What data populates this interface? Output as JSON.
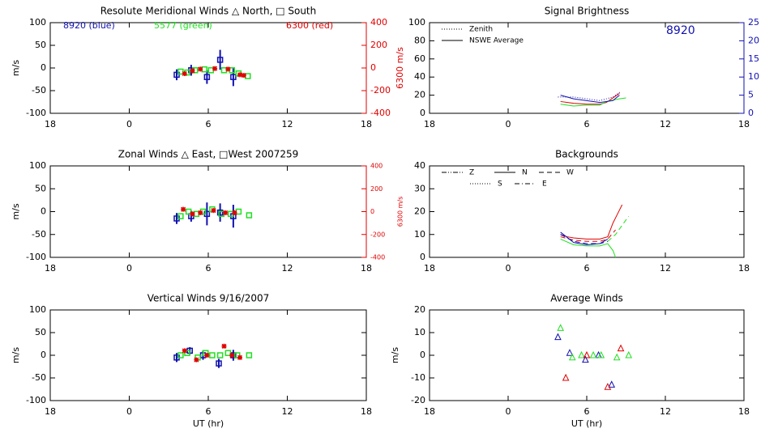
{
  "chart_data": [
    {
      "type": "scatter",
      "title": "Resolute Meridional Winds △ North, □ South",
      "ylabel": "m/s",
      "y2label": "6300 m/s",
      "y2color": "#e00000",
      "xlim": [
        -6,
        18
      ],
      "xticks": [
        {
          "value": -6,
          "label": "18"
        },
        0,
        6,
        12,
        18
      ],
      "ylim": [
        -100,
        100
      ],
      "yticks": [
        -100,
        -50,
        0,
        50,
        100
      ],
      "y2lim": [
        -400,
        400
      ],
      "y2ticks": [
        -400,
        -200,
        0,
        200,
        400
      ],
      "annotations": [
        {
          "text": "8920 (blue)",
          "color": "#1010b0"
        },
        {
          "text": "5577 (green)",
          "color": "#20e020"
        },
        {
          "text": "6300 (red)",
          "color": "#e00000"
        }
      ],
      "series": [
        {
          "color": "#1010b0",
          "marker": "square",
          "x": [
            3.6,
            4.7,
            5.9,
            6.9,
            7.9
          ],
          "values": [
            -15,
            -5,
            -20,
            18,
            -20
          ],
          "errors": [
            12,
            12,
            15,
            22,
            20
          ]
        },
        {
          "color": "#20e020",
          "marker": "square",
          "x": [
            3.9,
            4.4,
            5.0,
            5.7,
            6.2,
            7.2,
            7.8,
            8.3,
            9.0
          ],
          "values": [
            -8,
            -10,
            -5,
            -3,
            -5,
            -5,
            -5,
            -12,
            -18
          ]
        },
        {
          "color": "#e00000",
          "marker": "asterisk",
          "axis": "y2",
          "x": [
            4.2,
            4.8,
            5.4,
            6.5,
            7.5,
            8.4,
            8.7
          ],
          "values": [
            -50,
            -25,
            -10,
            -5,
            -10,
            -60,
            -65
          ]
        }
      ]
    },
    {
      "type": "scatter",
      "title": "Zonal Winds △ East, □West 2007259",
      "ylabel": "m/s",
      "y2label": "6300 m/s",
      "y2color": "#e00000",
      "xlim": [
        -6,
        18
      ],
      "xticks": [
        {
          "value": -6,
          "label": "18"
        },
        0,
        6,
        12,
        18
      ],
      "ylim": [
        -100,
        100
      ],
      "yticks": [
        -100,
        -50,
        0,
        50,
        100
      ],
      "y2lim": [
        -400,
        400
      ],
      "y2ticks": [
        -400,
        -200,
        0,
        200,
        400
      ],
      "series": [
        {
          "color": "#1010b0",
          "marker": "square",
          "x": [
            3.6,
            4.7,
            5.9,
            6.9,
            7.9
          ],
          "values": [
            -15,
            -10,
            -5,
            -2,
            -10
          ],
          "errors": [
            12,
            12,
            25,
            20,
            25
          ]
        },
        {
          "color": "#20e020",
          "marker": "square",
          "x": [
            3.9,
            4.5,
            5.1,
            5.6,
            6.3,
            7.0,
            7.7,
            8.3,
            9.1
          ],
          "values": [
            -10,
            0,
            -5,
            0,
            5,
            -5,
            -5,
            0,
            -8
          ]
        },
        {
          "color": "#e00000",
          "marker": "asterisk",
          "axis": "y2",
          "x": [
            4.1,
            4.8,
            5.4,
            6.4,
            7.3,
            8.0
          ],
          "values": [
            20,
            -20,
            -10,
            10,
            -10,
            -10
          ]
        }
      ]
    },
    {
      "type": "scatter",
      "title": "Vertical Winds 9/16/2007",
      "ylabel": "m/s",
      "xlabel": "UT (hr)",
      "xlim": [
        -6,
        18
      ],
      "xticks": [
        {
          "value": -6,
          "label": "18"
        },
        0,
        6,
        12,
        18
      ],
      "ylim": [
        -100,
        100
      ],
      "yticks": [
        -100,
        -50,
        0,
        50,
        100
      ],
      "series": [
        {
          "color": "#1010b0",
          "marker": "square",
          "x": [
            3.6,
            4.6,
            5.6,
            6.8,
            7.9
          ],
          "values": [
            -5,
            10,
            0,
            -18,
            0
          ],
          "errors": [
            10,
            8,
            10,
            10,
            12
          ]
        },
        {
          "color": "#20e020",
          "marker": "square",
          "x": [
            3.9,
            4.4,
            5.2,
            5.8,
            6.3,
            6.9,
            7.5,
            8.2,
            9.1
          ],
          "values": [
            0,
            5,
            -5,
            5,
            0,
            0,
            5,
            0,
            0
          ]
        },
        {
          "color": "#e00000",
          "marker": "asterisk",
          "x": [
            4.2,
            5.1,
            5.9,
            7.2,
            7.8,
            8.4
          ],
          "values": [
            10,
            -10,
            0,
            20,
            0,
            -5
          ]
        }
      ]
    },
    {
      "type": "line",
      "title": "Signal Brightness",
      "y2color": "#1010b0",
      "xlim": [
        -6,
        18
      ],
      "xticks": [
        {
          "value": -6,
          "label": "18"
        },
        0,
        6,
        12,
        18
      ],
      "ylim": [
        0,
        100
      ],
      "yticks": [
        0,
        20,
        40,
        60,
        80,
        100
      ],
      "y2lim": [
        0,
        25
      ],
      "y2ticks": [
        0,
        5,
        10,
        15,
        20,
        25
      ],
      "annotations": [
        {
          "text": "8920",
          "color": "#1010b0"
        }
      ],
      "legend": [
        {
          "label": "Zenith",
          "dash": "dotted"
        },
        {
          "label": "NSWE Average",
          "dash": "solid"
        }
      ],
      "series": [
        {
          "color": "#e00000",
          "dash": "solid",
          "x": [
            4.0,
            5.0,
            6.0,
            7.0,
            7.5,
            8.0,
            8.5
          ],
          "values": [
            13,
            11,
            10,
            10,
            12,
            17,
            22
          ]
        },
        {
          "color": "#20e020",
          "dash": "solid",
          "x": [
            4.0,
            5.0,
            6.0,
            7.0,
            7.5,
            8.5,
            9.0
          ],
          "values": [
            10,
            8,
            9,
            9,
            13,
            16,
            17
          ]
        },
        {
          "color": "#1010b0",
          "dash": "solid",
          "axis": "y2",
          "x": [
            4.0,
            5.0,
            6.0,
            7.0,
            8.0,
            8.5
          ],
          "values": [
            5,
            4,
            3.5,
            3,
            3.5,
            5
          ]
        },
        {
          "color": "#1010b0",
          "dash": "dotted",
          "axis": "y2",
          "x": [
            3.8,
            5.0,
            6.0,
            7.0,
            8.0,
            8.6
          ],
          "values": [
            4.5,
            4.5,
            4,
            3.5,
            4.5,
            6
          ]
        }
      ]
    },
    {
      "type": "line",
      "title": "Backgrounds",
      "xlim": [
        -6,
        18
      ],
      "xticks": [
        {
          "value": -6,
          "label": "18"
        },
        0,
        6,
        12,
        18
      ],
      "ylim": [
        0,
        40
      ],
      "yticks": [
        0,
        10,
        20,
        30,
        40
      ],
      "legend": [
        {
          "label": "Z",
          "dash": "dashdotdot"
        },
        {
          "label": "N",
          "dash": "solid"
        },
        {
          "label": "W",
          "dash": "dashed"
        },
        {
          "label": "S",
          "dash": "dotted"
        },
        {
          "label": "E",
          "dash": "dashdot"
        }
      ],
      "series": [
        {
          "color": "#e00000",
          "dash": "solid",
          "x": [
            4.0,
            4.5,
            5.0,
            6.0,
            7.0,
            7.6,
            8.0,
            8.7
          ],
          "values": [
            10,
            9,
            8.5,
            8,
            8,
            9,
            15,
            23
          ]
        },
        {
          "color": "#e00000",
          "dash": "dashed",
          "x": [
            4.0,
            5.0,
            6.0,
            7.0,
            7.6,
            8.2
          ],
          "values": [
            9,
            7.5,
            7,
            7,
            8,
            12
          ]
        },
        {
          "color": "#20e020",
          "dash": "solid",
          "x": [
            4.0,
            5.0,
            6.0,
            7.0,
            7.6,
            8.0,
            8.2
          ],
          "values": [
            8,
            5.5,
            5,
            5,
            6,
            3,
            0
          ]
        },
        {
          "color": "#20e020",
          "dash": "dashed",
          "x": [
            7.6,
            8.2,
            8.7,
            9.2
          ],
          "values": [
            7,
            10,
            14,
            18
          ]
        },
        {
          "color": "#1010b0",
          "dash": "solid",
          "x": [
            4.0,
            5.0,
            6.0,
            7.0,
            7.6
          ],
          "values": [
            11,
            6.5,
            5.5,
            6,
            8
          ]
        },
        {
          "color": "#1010b0",
          "dash": "dashed",
          "x": [
            4.0,
            5.0,
            6.0,
            7.0,
            7.6
          ],
          "values": [
            10,
            7,
            6,
            6,
            7
          ]
        }
      ]
    },
    {
      "type": "scatter",
      "title": "Average Winds",
      "ylabel": "m/s",
      "xlabel": "UT (hr)",
      "xlim": [
        -6,
        18
      ],
      "xticks": [
        {
          "value": -6,
          "label": "18"
        },
        0,
        6,
        12,
        18
      ],
      "ylim": [
        -20,
        20
      ],
      "yticks": [
        -20,
        -10,
        0,
        10,
        20
      ],
      "series": [
        {
          "color": "#1010b0",
          "marker": "triangle",
          "x": [
            3.8,
            4.7,
            5.9,
            6.9,
            7.9
          ],
          "values": [
            8,
            1,
            -2,
            0,
            -13
          ]
        },
        {
          "color": "#20e020",
          "marker": "triangle",
          "x": [
            4.0,
            4.9,
            5.6,
            6.5,
            7.1,
            8.3,
            9.2
          ],
          "values": [
            12,
            -1,
            0,
            0,
            0,
            -1,
            0
          ]
        },
        {
          "color": "#e00000",
          "marker": "triangle",
          "x": [
            4.4,
            6.0,
            7.6,
            8.6
          ],
          "values": [
            -10,
            0,
            -14,
            3
          ]
        }
      ]
    }
  ]
}
